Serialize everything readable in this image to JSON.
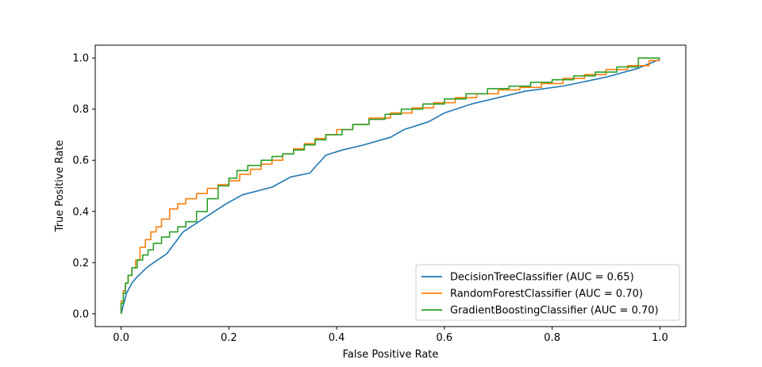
{
  "chart_data": {
    "type": "line",
    "title": "",
    "xlabel": "False Positive Rate",
    "ylabel": "True Positive Rate",
    "xlim": [
      -0.048,
      1.048
    ],
    "ylim": [
      -0.05,
      1.05
    ],
    "xticks": [
      0.0,
      0.2,
      0.4,
      0.6,
      0.8,
      1.0
    ],
    "yticks": [
      0.0,
      0.2,
      0.4,
      0.6,
      0.8,
      1.0
    ],
    "tick_labels_x": [
      "0.0",
      "0.2",
      "0.4",
      "0.6",
      "0.8",
      "1.0"
    ],
    "tick_labels_y": [
      "0.0",
      "0.2",
      "0.4",
      "0.6",
      "0.8",
      "1.0"
    ],
    "legend_position": "lower-right",
    "series": [
      {
        "name": "DecisionTreeClassifier (AUC = 0.65)",
        "color": "#1f77b4",
        "x": [
          0.0,
          0.005,
          0.01,
          0.02,
          0.03,
          0.05,
          0.085,
          0.115,
          0.155,
          0.195,
          0.225,
          0.28,
          0.315,
          0.35,
          0.38,
          0.41,
          0.45,
          0.5,
          0.525,
          0.57,
          0.6,
          0.65,
          0.7,
          0.75,
          0.82,
          0.9,
          0.96,
          1.0
        ],
        "y": [
          0.0,
          0.04,
          0.08,
          0.12,
          0.145,
          0.185,
          0.235,
          0.32,
          0.375,
          0.43,
          0.465,
          0.495,
          0.535,
          0.55,
          0.62,
          0.64,
          0.66,
          0.69,
          0.72,
          0.75,
          0.785,
          0.82,
          0.845,
          0.87,
          0.89,
          0.925,
          0.96,
          0.995
        ]
      },
      {
        "name": "RandomForestClassifier (AUC = 0.70)",
        "color": "#ff7f0e",
        "x": [
          0.0,
          0.004,
          0.008,
          0.013,
          0.02,
          0.027,
          0.035,
          0.045,
          0.055,
          0.065,
          0.075,
          0.09,
          0.105,
          0.12,
          0.14,
          0.16,
          0.18,
          0.2,
          0.22,
          0.24,
          0.26,
          0.28,
          0.3,
          0.32,
          0.34,
          0.36,
          0.38,
          0.4,
          0.43,
          0.46,
          0.5,
          0.54,
          0.58,
          0.62,
          0.66,
          0.7,
          0.74,
          0.78,
          0.82,
          0.86,
          0.9,
          0.94,
          0.98,
          1.0
        ],
        "y": [
          0.0,
          0.05,
          0.09,
          0.12,
          0.15,
          0.18,
          0.21,
          0.26,
          0.29,
          0.32,
          0.34,
          0.37,
          0.41,
          0.43,
          0.45,
          0.47,
          0.49,
          0.505,
          0.52,
          0.545,
          0.565,
          0.585,
          0.6,
          0.625,
          0.645,
          0.665,
          0.685,
          0.7,
          0.72,
          0.74,
          0.765,
          0.785,
          0.805,
          0.825,
          0.845,
          0.86,
          0.875,
          0.885,
          0.9,
          0.92,
          0.935,
          0.955,
          0.97,
          0.99
        ]
      },
      {
        "name": "GradientBoostingClassifier (AUC = 0.70)",
        "color": "#2ca02c",
        "x": [
          0.0,
          0.004,
          0.008,
          0.013,
          0.02,
          0.03,
          0.04,
          0.05,
          0.06,
          0.075,
          0.09,
          0.105,
          0.12,
          0.14,
          0.16,
          0.18,
          0.2,
          0.215,
          0.235,
          0.26,
          0.28,
          0.3,
          0.32,
          0.34,
          0.36,
          0.38,
          0.41,
          0.43,
          0.46,
          0.49,
          0.52,
          0.56,
          0.6,
          0.64,
          0.68,
          0.72,
          0.76,
          0.8,
          0.84,
          0.88,
          0.92,
          0.96,
          1.0
        ],
        "y": [
          0.0,
          0.04,
          0.08,
          0.12,
          0.15,
          0.18,
          0.21,
          0.23,
          0.25,
          0.275,
          0.3,
          0.32,
          0.34,
          0.36,
          0.4,
          0.45,
          0.5,
          0.53,
          0.56,
          0.58,
          0.6,
          0.615,
          0.625,
          0.64,
          0.66,
          0.68,
          0.7,
          0.72,
          0.74,
          0.76,
          0.78,
          0.8,
          0.82,
          0.84,
          0.86,
          0.88,
          0.89,
          0.905,
          0.915,
          0.93,
          0.945,
          0.965,
          1.0
        ]
      }
    ]
  }
}
